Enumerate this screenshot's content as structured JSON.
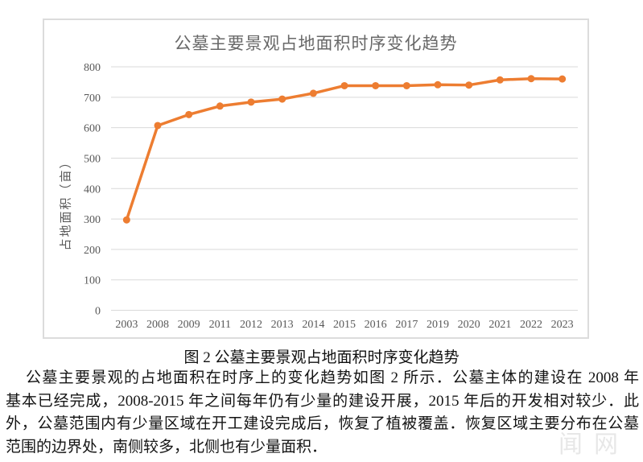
{
  "figure": {
    "caption": "图 2 公墓主要景观占地面积时序变化趋势"
  },
  "paragraph": {
    "lines": [
      "公墓主要景观的占地面积在时序上的变化趋势如图 2 所示．公墓主体的建设在 2008 年",
      "基本已经完成，2008-2015 年之间每年仍有少量的建设开展，2015 年后的开发相对较少．此",
      "外，公墓范围内有少量区域在开工建设完成后，恢复了植被覆盖．恢复区域主要分布在公墓",
      "范围的边界处，南侧较多，北侧也有少量面积．"
    ]
  },
  "watermark": {
    "text": "闻网"
  },
  "chart_data": {
    "type": "line",
    "title": "公墓主要景观占地面积时序变化趋势",
    "xlabel": "",
    "ylabel": "占地面积（亩）",
    "categories": [
      "2003",
      "2008",
      "2009",
      "2011",
      "2012",
      "2013",
      "2014",
      "2015",
      "2016",
      "2017",
      "2019",
      "2020",
      "2021",
      "2022",
      "2023"
    ],
    "series": [
      {
        "name": "占地面积",
        "values": [
          297,
          607,
          643,
          671,
          684,
          694,
          713,
          738,
          738,
          738,
          741,
          740,
          757,
          761,
          760
        ]
      }
    ],
    "ylim": [
      0,
      800
    ],
    "ytick_interval": 100,
    "grid": true,
    "legend_position": "none",
    "colors": {
      "line": "#ED7D31",
      "grid": "#D9D9D9",
      "axis_text": "#595959",
      "title_text": "#686868",
      "frame_border": "#DCDCDC"
    }
  }
}
